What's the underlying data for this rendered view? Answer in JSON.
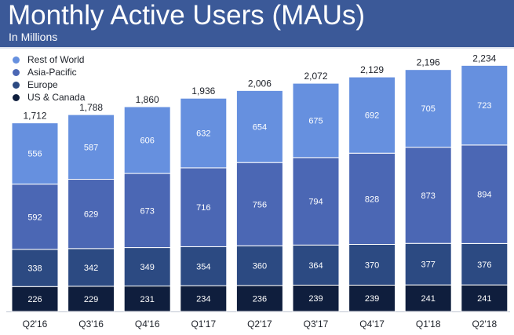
{
  "header": {
    "title": "Monthly Active Users (MAUs)",
    "subtitle": "In Millions"
  },
  "chart_data": {
    "type": "bar",
    "stacked": true,
    "title": "Monthly Active Users (MAUs)",
    "subtitle": "In Millions",
    "xlabel": "",
    "ylabel": "",
    "ylim": [
      0,
      2400
    ],
    "grid": false,
    "legend_position": "top-left",
    "categories": [
      "Q2'16",
      "Q3'16",
      "Q4'16",
      "Q1'17",
      "Q2'17",
      "Q3'17",
      "Q4'17",
      "Q1'18",
      "Q2'18"
    ],
    "totals": [
      "1,712",
      "1,788",
      "1,860",
      "1,936",
      "2,006",
      "2,072",
      "2,129",
      "2,196",
      "2,234"
    ],
    "series": [
      {
        "name": "US & Canada",
        "color": "#0f1e3d",
        "values": [
          226,
          229,
          231,
          234,
          236,
          239,
          239,
          241,
          241
        ]
      },
      {
        "name": "Europe",
        "color": "#2c4a82",
        "values": [
          338,
          342,
          349,
          354,
          360,
          364,
          370,
          377,
          376
        ]
      },
      {
        "name": "Asia-Pacific",
        "color": "#4b67b4",
        "values": [
          592,
          629,
          673,
          716,
          756,
          794,
          828,
          873,
          894
        ]
      },
      {
        "name": "Rest of World",
        "color": "#6690df",
        "values": [
          556,
          587,
          606,
          632,
          654,
          675,
          692,
          705,
          723
        ]
      }
    ],
    "legend_order": [
      "Rest of World",
      "Asia-Pacific",
      "Europe",
      "US & Canada"
    ]
  }
}
